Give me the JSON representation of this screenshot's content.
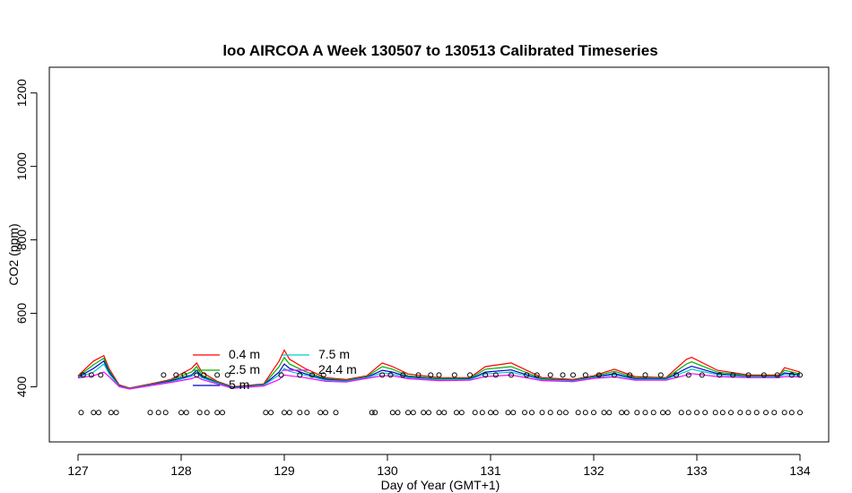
{
  "chart_data": {
    "type": "line",
    "title": "loo AIRCOA A  Week 130507 to 130513  Calibrated Timeseries",
    "xlabel": "Day of Year (GMT+1)",
    "ylabel": "CO2 (ppm)",
    "xlim": [
      127,
      134
    ],
    "ylim": [
      250,
      1270
    ],
    "x_ticks": [
      127,
      128,
      129,
      130,
      131,
      132,
      133,
      134
    ],
    "y_ticks": [
      400,
      600,
      800,
      1000,
      1200
    ],
    "x_tick_labels": [
      "127",
      "128",
      "129",
      "130",
      "131",
      "132",
      "133",
      "134"
    ],
    "y_tick_labels": [
      "400",
      "600",
      "800",
      "1000",
      "1200"
    ],
    "series": [
      {
        "name": "0.4 m",
        "color": "#ff0000",
        "x": [
          127.0,
          127.15,
          127.25,
          127.3,
          127.4,
          127.5,
          127.7,
          127.9,
          128.1,
          128.15,
          128.2,
          128.35,
          128.5,
          128.8,
          128.95,
          129.0,
          129.05,
          129.2,
          129.4,
          129.6,
          129.8,
          129.95,
          130.05,
          130.2,
          130.5,
          130.8,
          130.95,
          131.2,
          131.5,
          131.8,
          132.0,
          132.2,
          132.4,
          132.7,
          132.9,
          132.95,
          133.2,
          133.5,
          133.8,
          133.85,
          134.0
        ],
        "y": [
          430,
          470,
          485,
          450,
          405,
          397,
          408,
          420,
          450,
          465,
          440,
          415,
          400,
          408,
          470,
          500,
          475,
          450,
          425,
          420,
          430,
          465,
          455,
          435,
          425,
          425,
          455,
          465,
          425,
          420,
          430,
          448,
          428,
          425,
          475,
          480,
          445,
          432,
          432,
          452,
          440
        ]
      },
      {
        "name": "2.5 m",
        "color": "#00b000",
        "x": [
          127.0,
          127.15,
          127.25,
          127.3,
          127.4,
          127.5,
          127.7,
          127.9,
          128.1,
          128.15,
          128.2,
          128.35,
          128.5,
          128.8,
          128.95,
          129.0,
          129.05,
          129.2,
          129.4,
          129.6,
          129.8,
          129.95,
          130.05,
          130.2,
          130.5,
          130.8,
          130.95,
          131.2,
          131.5,
          131.8,
          132.0,
          132.2,
          132.4,
          132.7,
          132.9,
          132.95,
          133.2,
          133.5,
          133.8,
          133.85,
          134.0
        ],
        "y": [
          428,
          460,
          478,
          445,
          403,
          396,
          406,
          418,
          440,
          455,
          432,
          413,
          399,
          406,
          455,
          480,
          462,
          442,
          422,
          418,
          428,
          455,
          448,
          430,
          422,
          423,
          448,
          455,
          422,
          418,
          428,
          442,
          425,
          423,
          462,
          468,
          440,
          430,
          430,
          445,
          435
        ]
      },
      {
        "name": "5 m",
        "color": "#0000cc",
        "x": [
          127.0,
          127.15,
          127.25,
          127.3,
          127.4,
          127.5,
          127.7,
          127.9,
          128.1,
          128.15,
          128.2,
          128.35,
          128.5,
          128.8,
          128.95,
          129.0,
          129.05,
          129.2,
          129.4,
          129.6,
          129.8,
          129.95,
          130.05,
          130.2,
          130.5,
          130.8,
          130.95,
          131.2,
          131.5,
          131.8,
          132.0,
          132.2,
          132.4,
          132.7,
          132.9,
          132.95,
          133.2,
          133.5,
          133.8,
          133.85,
          134.0
        ],
        "y": [
          426,
          450,
          470,
          440,
          402,
          395,
          405,
          416,
          432,
          445,
          428,
          411,
          398,
          405,
          440,
          462,
          450,
          436,
          420,
          416,
          426,
          445,
          440,
          427,
          420,
          421,
          440,
          446,
          420,
          417,
          426,
          436,
          422,
          421,
          450,
          456,
          436,
          428,
          428,
          438,
          432
        ]
      },
      {
        "name": "7.5 m",
        "color": "#00cccc",
        "x": [
          127.0,
          127.15,
          127.25,
          127.3,
          127.4,
          127.5,
          127.7,
          127.9,
          128.1,
          128.15,
          128.2,
          128.35,
          128.5,
          128.8,
          128.95,
          129.0,
          129.05,
          129.2,
          129.4,
          129.6,
          129.8,
          129.95,
          130.05,
          130.2,
          130.5,
          130.8,
          130.95,
          131.2,
          131.5,
          131.8,
          132.0,
          132.2,
          132.4,
          132.7,
          132.9,
          132.95,
          133.2,
          133.5,
          133.8,
          133.85,
          134.0
        ],
        "y": [
          425,
          440,
          462,
          436,
          401,
          395,
          404,
          414,
          428,
          438,
          425,
          410,
          397,
          404,
          432,
          450,
          442,
          432,
          418,
          415,
          425,
          438,
          435,
          425,
          419,
          420,
          435,
          440,
          419,
          416,
          425,
          432,
          420,
          420,
          442,
          448,
          433,
          427,
          427,
          434,
          430
        ]
      },
      {
        "name": "24.4 m",
        "color": "#ff00ff",
        "x": [
          127.0,
          127.15,
          127.25,
          127.3,
          127.4,
          127.5,
          127.7,
          127.9,
          128.1,
          128.15,
          128.2,
          128.35,
          128.5,
          128.8,
          128.95,
          129.0,
          129.05,
          129.2,
          129.4,
          129.6,
          129.8,
          129.95,
          130.05,
          130.2,
          130.5,
          130.8,
          130.95,
          131.2,
          131.5,
          131.8,
          132.0,
          132.2,
          132.4,
          132.7,
          132.9,
          132.95,
          133.2,
          133.5,
          133.8,
          133.85,
          134.0
        ],
        "y": [
          424,
          430,
          440,
          428,
          400,
          394,
          403,
          412,
          422,
          428,
          420,
          408,
          396,
          402,
          420,
          432,
          430,
          425,
          415,
          413,
          423,
          430,
          430,
          422,
          417,
          418,
          428,
          432,
          417,
          414,
          423,
          427,
          418,
          418,
          432,
          436,
          428,
          425,
          425,
          428,
          427
        ]
      }
    ],
    "markers": {
      "style": "open-circle",
      "upper_level_ppm": 432,
      "lower_level_ppm": 330,
      "upper_x": [
        127.05,
        127.13,
        127.22,
        127.83,
        127.95,
        128.03,
        128.15,
        128.22,
        128.35,
        128.45,
        128.97,
        129.15,
        129.27,
        129.38,
        129.95,
        130.03,
        130.15,
        130.3,
        130.42,
        130.5,
        130.65,
        130.8,
        130.95,
        131.05,
        131.2,
        131.35,
        131.45,
        131.58,
        131.7,
        131.8,
        131.92,
        132.05,
        132.2,
        132.35,
        132.5,
        132.65,
        132.8,
        132.92,
        133.05,
        133.22,
        133.35,
        133.5,
        133.65,
        133.78,
        133.92,
        134.0
      ],
      "lower_x": [
        127.03,
        127.15,
        127.2,
        127.32,
        127.37,
        127.7,
        127.78,
        127.85,
        128.0,
        128.05,
        128.18,
        128.25,
        128.35,
        128.4,
        128.82,
        128.87,
        129.0,
        129.05,
        129.15,
        129.22,
        129.35,
        129.4,
        129.5,
        129.85,
        129.88,
        130.05,
        130.1,
        130.2,
        130.25,
        130.35,
        130.4,
        130.5,
        130.55,
        130.67,
        130.72,
        130.85,
        130.92,
        131.0,
        131.05,
        131.17,
        131.22,
        131.33,
        131.4,
        131.5,
        131.58,
        131.67,
        131.73,
        131.85,
        131.92,
        132.0,
        132.1,
        132.15,
        132.27,
        132.32,
        132.42,
        132.5,
        132.58,
        132.67,
        132.72,
        132.85,
        132.92,
        133.0,
        133.08,
        133.18,
        133.25,
        133.33,
        133.42,
        133.5,
        133.58,
        133.67,
        133.75,
        133.85,
        133.92,
        134.0
      ]
    },
    "legend": {
      "placement": "inside-bottom-left",
      "entries": [
        "0.4 m",
        "2.5 m",
        "5 m",
        "7.5 m",
        "24.4 m"
      ]
    },
    "grid": false
  }
}
